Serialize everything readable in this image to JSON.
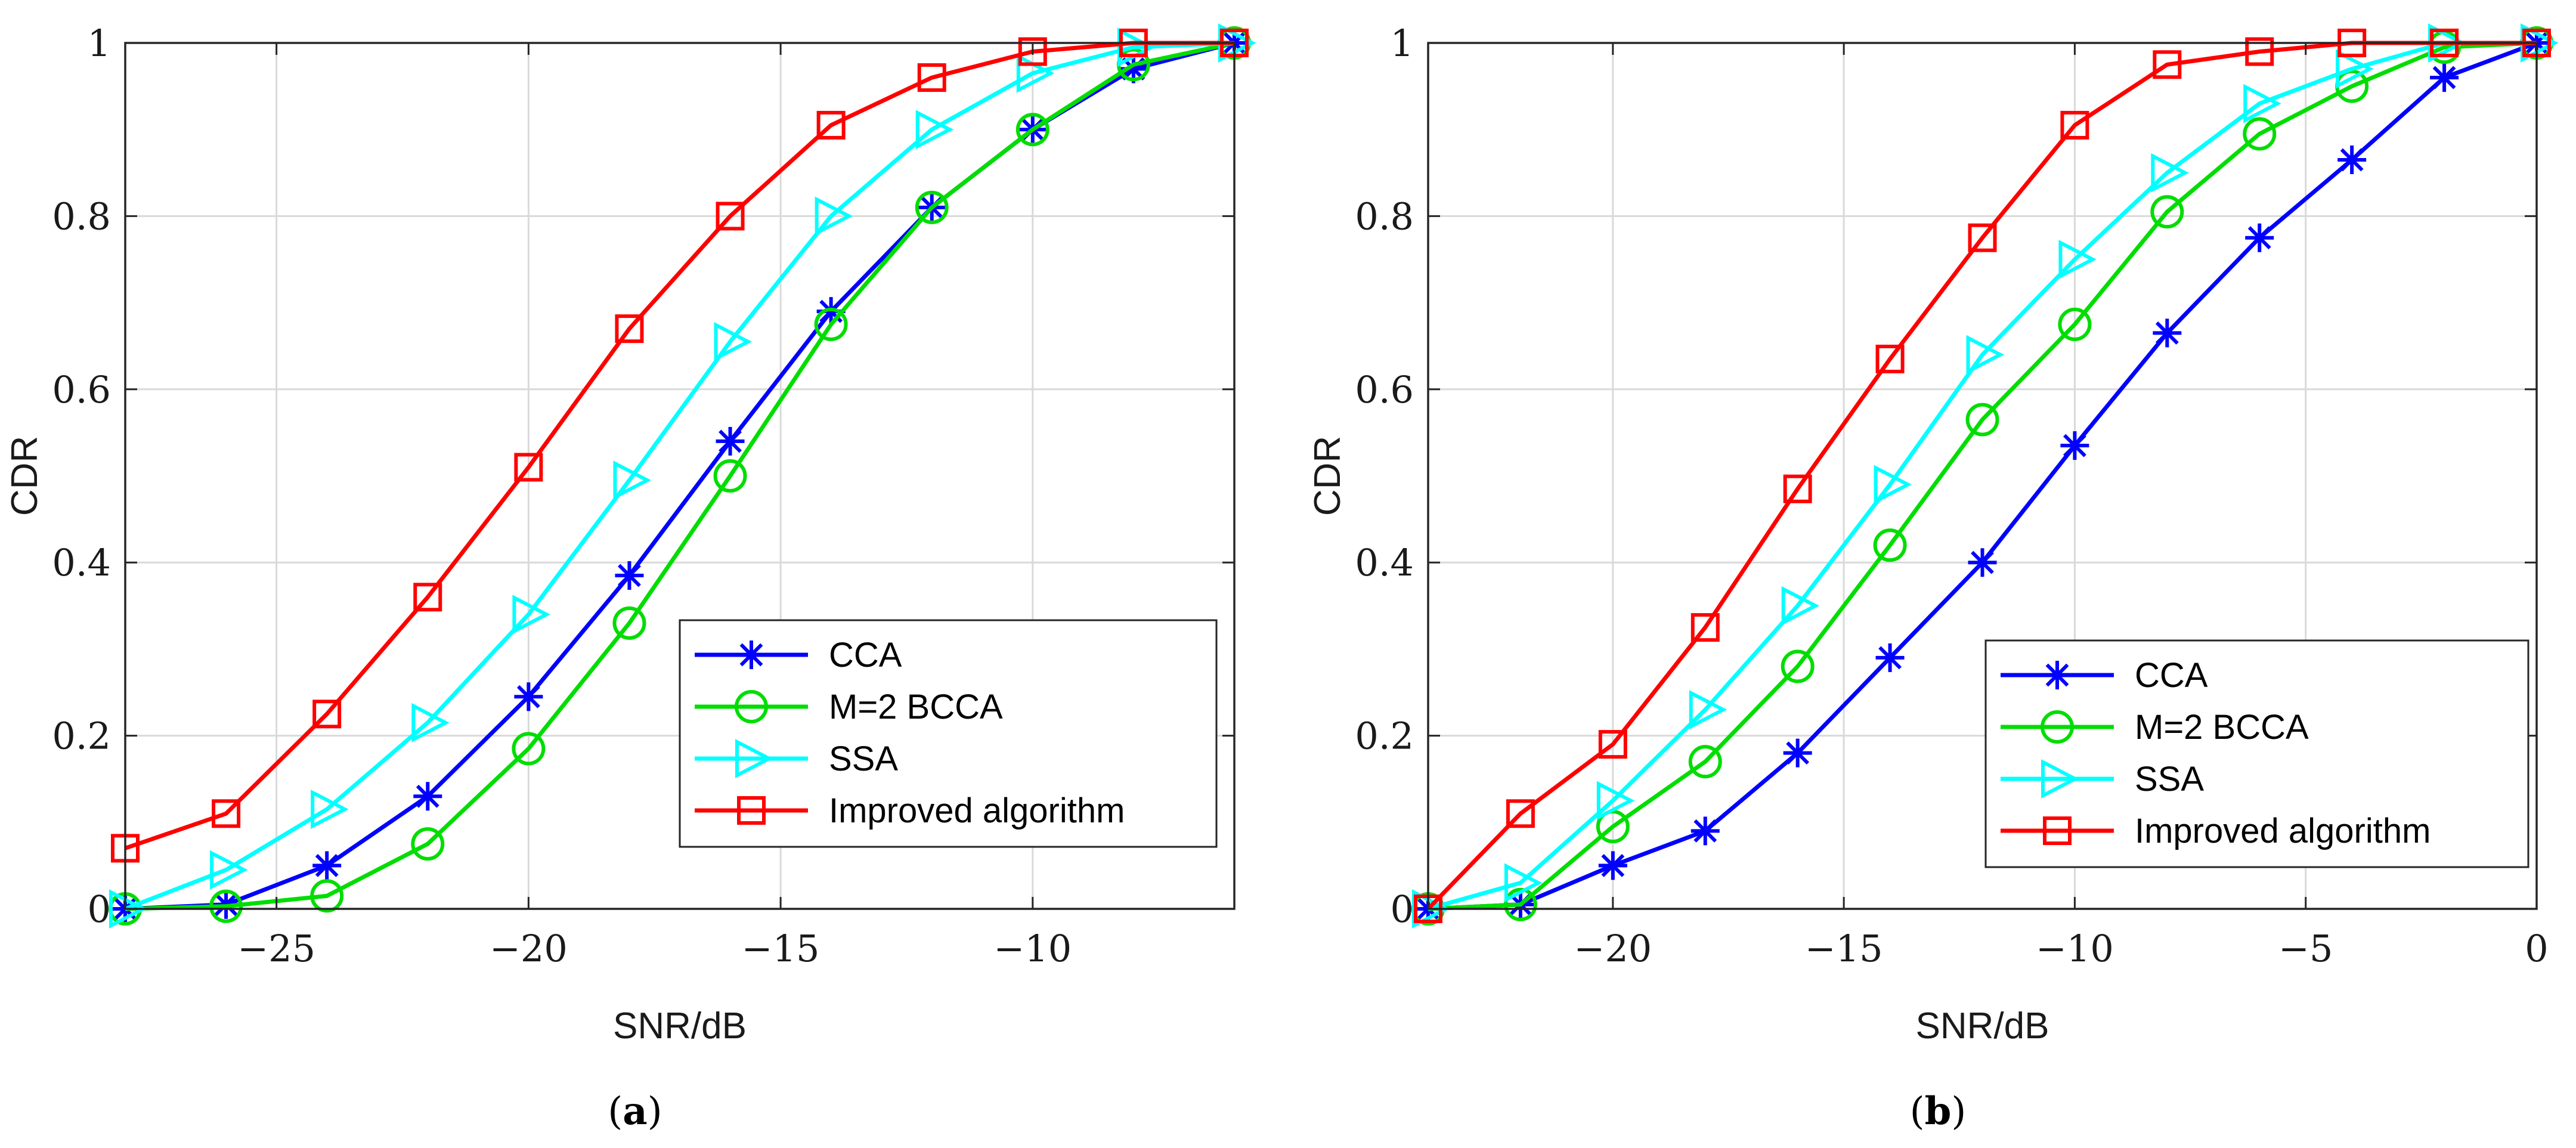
{
  "colors": {
    "CCA": "#0000ff",
    "M=2 BCCA": "#00dd00",
    "SSA": "#00ffff",
    "Improved algorithm": "#ff0000"
  },
  "chart_data": [
    {
      "type": "line",
      "caption": "a",
      "xlabel": "SNR/dB",
      "ylabel": "CDR",
      "xlim": [
        -28,
        -6
      ],
      "ylim": [
        0,
        1
      ],
      "xticks": [
        -25,
        -20,
        -15,
        -10
      ],
      "xtick_labels": [
        "−25",
        "−20",
        "−15",
        "−10"
      ],
      "yticks": [
        0,
        0.2,
        0.4,
        0.6,
        0.8,
        1
      ],
      "ytick_labels": [
        "0",
        "0.2",
        "0.4",
        "0.6",
        "0.8",
        "1"
      ],
      "grid": true,
      "legend_position": "bottom-right",
      "x": [
        -28,
        -26,
        -24,
        -22,
        -20,
        -18,
        -16,
        -14,
        -12,
        -10,
        -8,
        -6
      ],
      "series": [
        {
          "name": "CCA",
          "marker": "asterisk",
          "values": [
            0,
            0.005,
            0.05,
            0.13,
            0.245,
            0.385,
            0.54,
            0.69,
            0.81,
            0.9,
            0.97,
            1.0
          ]
        },
        {
          "name": "M=2 BCCA",
          "marker": "circle",
          "values": [
            0,
            0.003,
            0.015,
            0.075,
            0.185,
            0.33,
            0.5,
            0.675,
            0.81,
            0.9,
            0.975,
            1.0
          ]
        },
        {
          "name": "SSA",
          "marker": "triangle-right",
          "values": [
            0,
            0.045,
            0.115,
            0.215,
            0.34,
            0.495,
            0.655,
            0.8,
            0.9,
            0.965,
            0.995,
            1.0
          ]
        },
        {
          "name": "Improved algorithm",
          "marker": "square",
          "values": [
            0.07,
            0.11,
            0.225,
            0.36,
            0.51,
            0.67,
            0.8,
            0.905,
            0.96,
            0.99,
            1.0,
            1.0
          ]
        }
      ]
    },
    {
      "type": "line",
      "caption": "b",
      "xlabel": "SNR/dB",
      "ylabel": "CDR",
      "xlim": [
        -24,
        0
      ],
      "ylim": [
        0,
        1
      ],
      "xticks": [
        -20,
        -15,
        -10,
        -5,
        0
      ],
      "xtick_labels": [
        "−20",
        "−15",
        "−10",
        "−5",
        "0"
      ],
      "yticks": [
        0,
        0.2,
        0.4,
        0.6,
        0.8,
        1
      ],
      "ytick_labels": [
        "0",
        "0.2",
        "0.4",
        "0.6",
        "0.8",
        "1"
      ],
      "grid": true,
      "legend_position": "bottom-right",
      "x": [
        -24,
        -22,
        -20,
        -18,
        -16,
        -14,
        -12,
        -10,
        -8,
        -6,
        -4,
        -2,
        0
      ],
      "series": [
        {
          "name": "CCA",
          "marker": "asterisk",
          "values": [
            0,
            0.005,
            0.05,
            0.09,
            0.18,
            0.29,
            0.4,
            0.535,
            0.665,
            0.775,
            0.865,
            0.96,
            1.0
          ]
        },
        {
          "name": "M=2 BCCA",
          "marker": "circle",
          "values": [
            0,
            0.005,
            0.095,
            0.17,
            0.28,
            0.42,
            0.565,
            0.675,
            0.805,
            0.895,
            0.95,
            0.995,
            1.0
          ]
        },
        {
          "name": "SSA",
          "marker": "triangle-right",
          "values": [
            0,
            0.03,
            0.125,
            0.23,
            0.35,
            0.49,
            0.64,
            0.75,
            0.85,
            0.93,
            0.97,
            1.0,
            1.0
          ]
        },
        {
          "name": "Improved algorithm",
          "marker": "square",
          "values": [
            0,
            0.11,
            0.19,
            0.325,
            0.485,
            0.635,
            0.775,
            0.905,
            0.975,
            0.99,
            1.0,
            1.0,
            1.0
          ]
        }
      ]
    }
  ]
}
